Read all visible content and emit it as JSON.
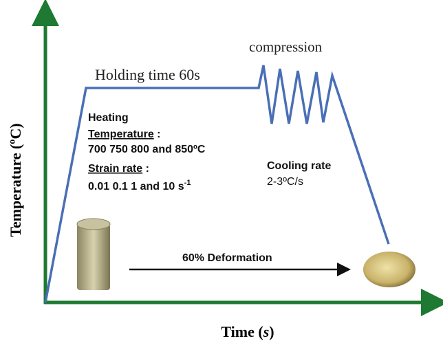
{
  "axes": {
    "y_label": "Temperature (ºC)",
    "x_label_main": "Time (",
    "x_label_italic": "s",
    "x_label_end": ")"
  },
  "process": {
    "holding": "Holding time 60s",
    "compression": "compression",
    "heating": "Heating",
    "temperature_label": "Temperature",
    "temperature_colon": " :",
    "temperature_values": "700  750  800 and 850ºC",
    "strain_label": "Strain rate",
    "strain_colon": " :",
    "strain_values": "0.01  0.1  1 and 10 s",
    "strain_unit_sup": "-1",
    "cooling_label": "Cooling rate",
    "cooling_value": "2-3ºC/s",
    "deformation": "60% Deformation"
  }
}
